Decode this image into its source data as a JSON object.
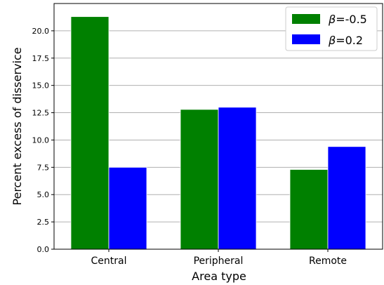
{
  "chart_data": {
    "type": "bar",
    "title": "",
    "xlabel": "Area type",
    "ylabel": "Percent excess of disservice",
    "categories": [
      "Central",
      "Peripheral",
      "Remote"
    ],
    "series": [
      {
        "name_prefix": "β",
        "name_value": "=-0.5",
        "values": [
          21.3,
          12.8,
          7.3
        ],
        "color": "#008000"
      },
      {
        "name_prefix": "β",
        "name_value": "=0.2",
        "values": [
          7.5,
          13.0,
          9.4
        ],
        "color": "#0000ff"
      }
    ],
    "ylim": [
      0,
      22.5
    ],
    "yticks": [
      0.0,
      2.5,
      5.0,
      7.5,
      10.0,
      12.5,
      15.0,
      17.5,
      20.0
    ],
    "ytick_labels": [
      "0.0",
      "2.5",
      "5.0",
      "7.5",
      "10.0",
      "12.5",
      "15.0",
      "17.5",
      "20.0"
    ],
    "grid": "horizontal",
    "legend_position": "top-right"
  }
}
